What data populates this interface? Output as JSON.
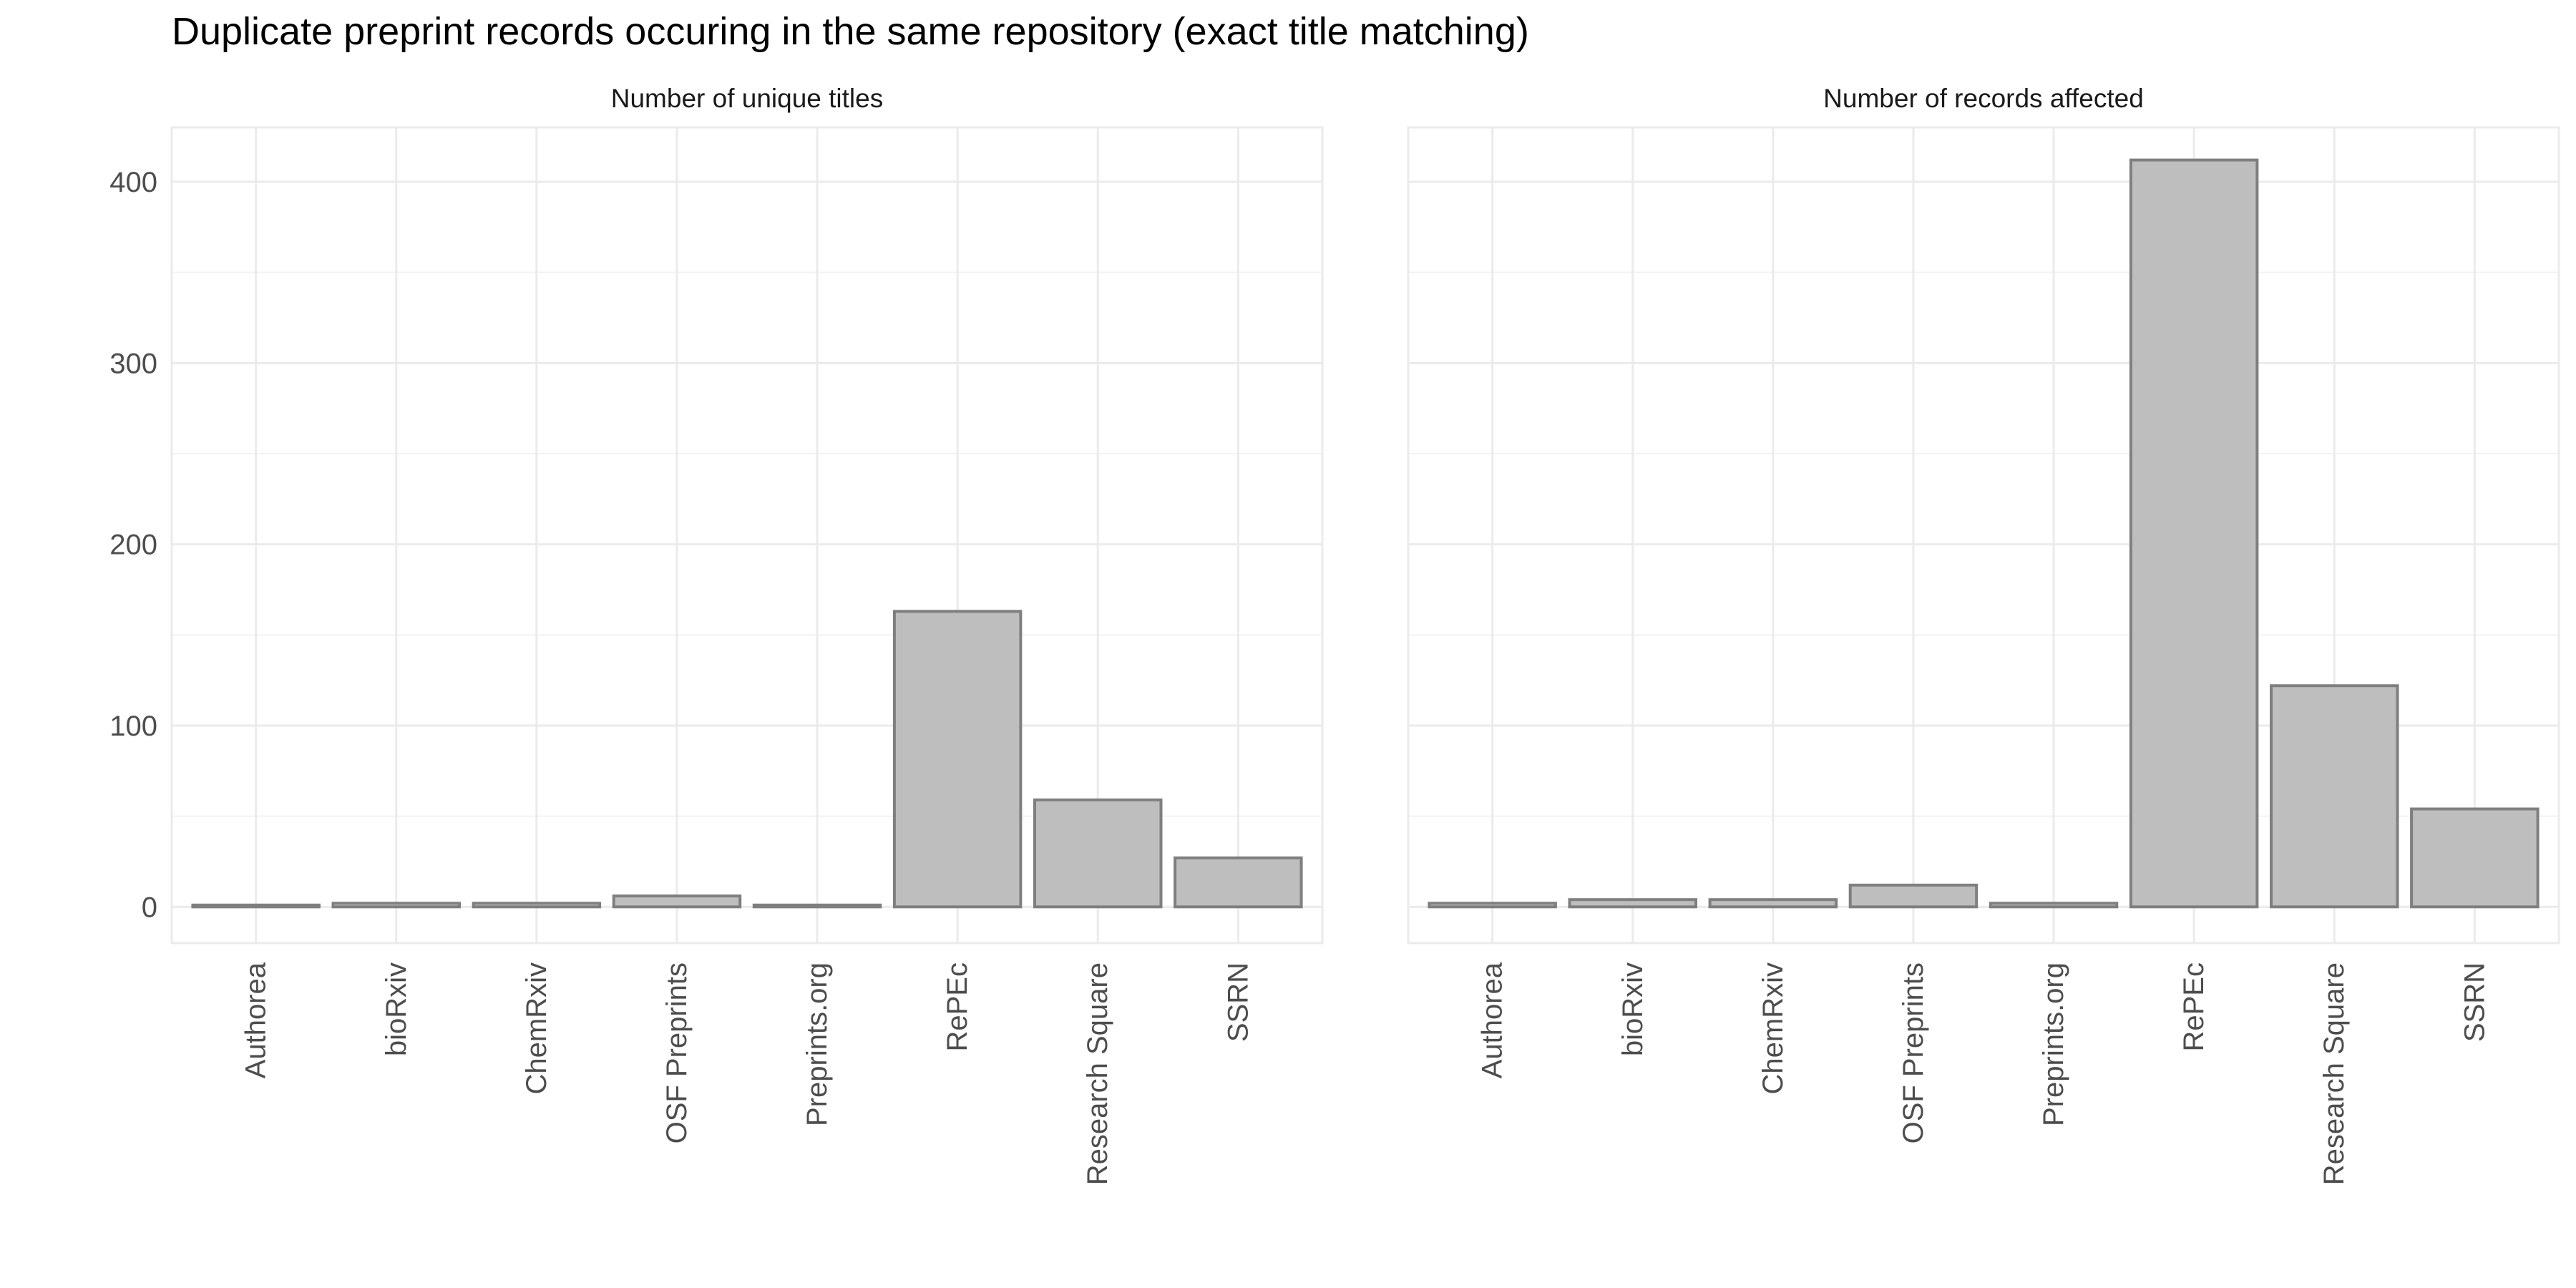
{
  "title": "Duplicate preprint records occuring in the same repository (exact title matching)",
  "colors": {
    "bar_fill": "#bebebe",
    "bar_stroke": "#7f7f7f",
    "grid_major": "#ebebeb",
    "grid_minor": "#f2f2f2",
    "panel_border": "#ebebeb",
    "tick_text": "#4d4d4d"
  },
  "chart_data": {
    "type": "bar",
    "facets_share_y": true,
    "categories": [
      "Authorea",
      "bioRxiv",
      "ChemRxiv",
      "OSF Preprints",
      "Preprints.org",
      "RePEc",
      "Research Square",
      "SSRN"
    ],
    "ylim": [
      -20,
      430
    ],
    "y_ticks": [
      0,
      100,
      200,
      300,
      400
    ],
    "grid": true,
    "x_tick_label_rotation": "vertical",
    "panels": [
      {
        "strip": "Number of unique titles",
        "series": [
          {
            "values": [
              1,
              2,
              2,
              6,
              1,
              163,
              59,
              27
            ]
          }
        ]
      },
      {
        "strip": "Number of records affected",
        "series": [
          {
            "values": [
              2,
              4,
              4,
              12,
              2,
              412,
              122,
              54
            ]
          }
        ]
      }
    ]
  }
}
